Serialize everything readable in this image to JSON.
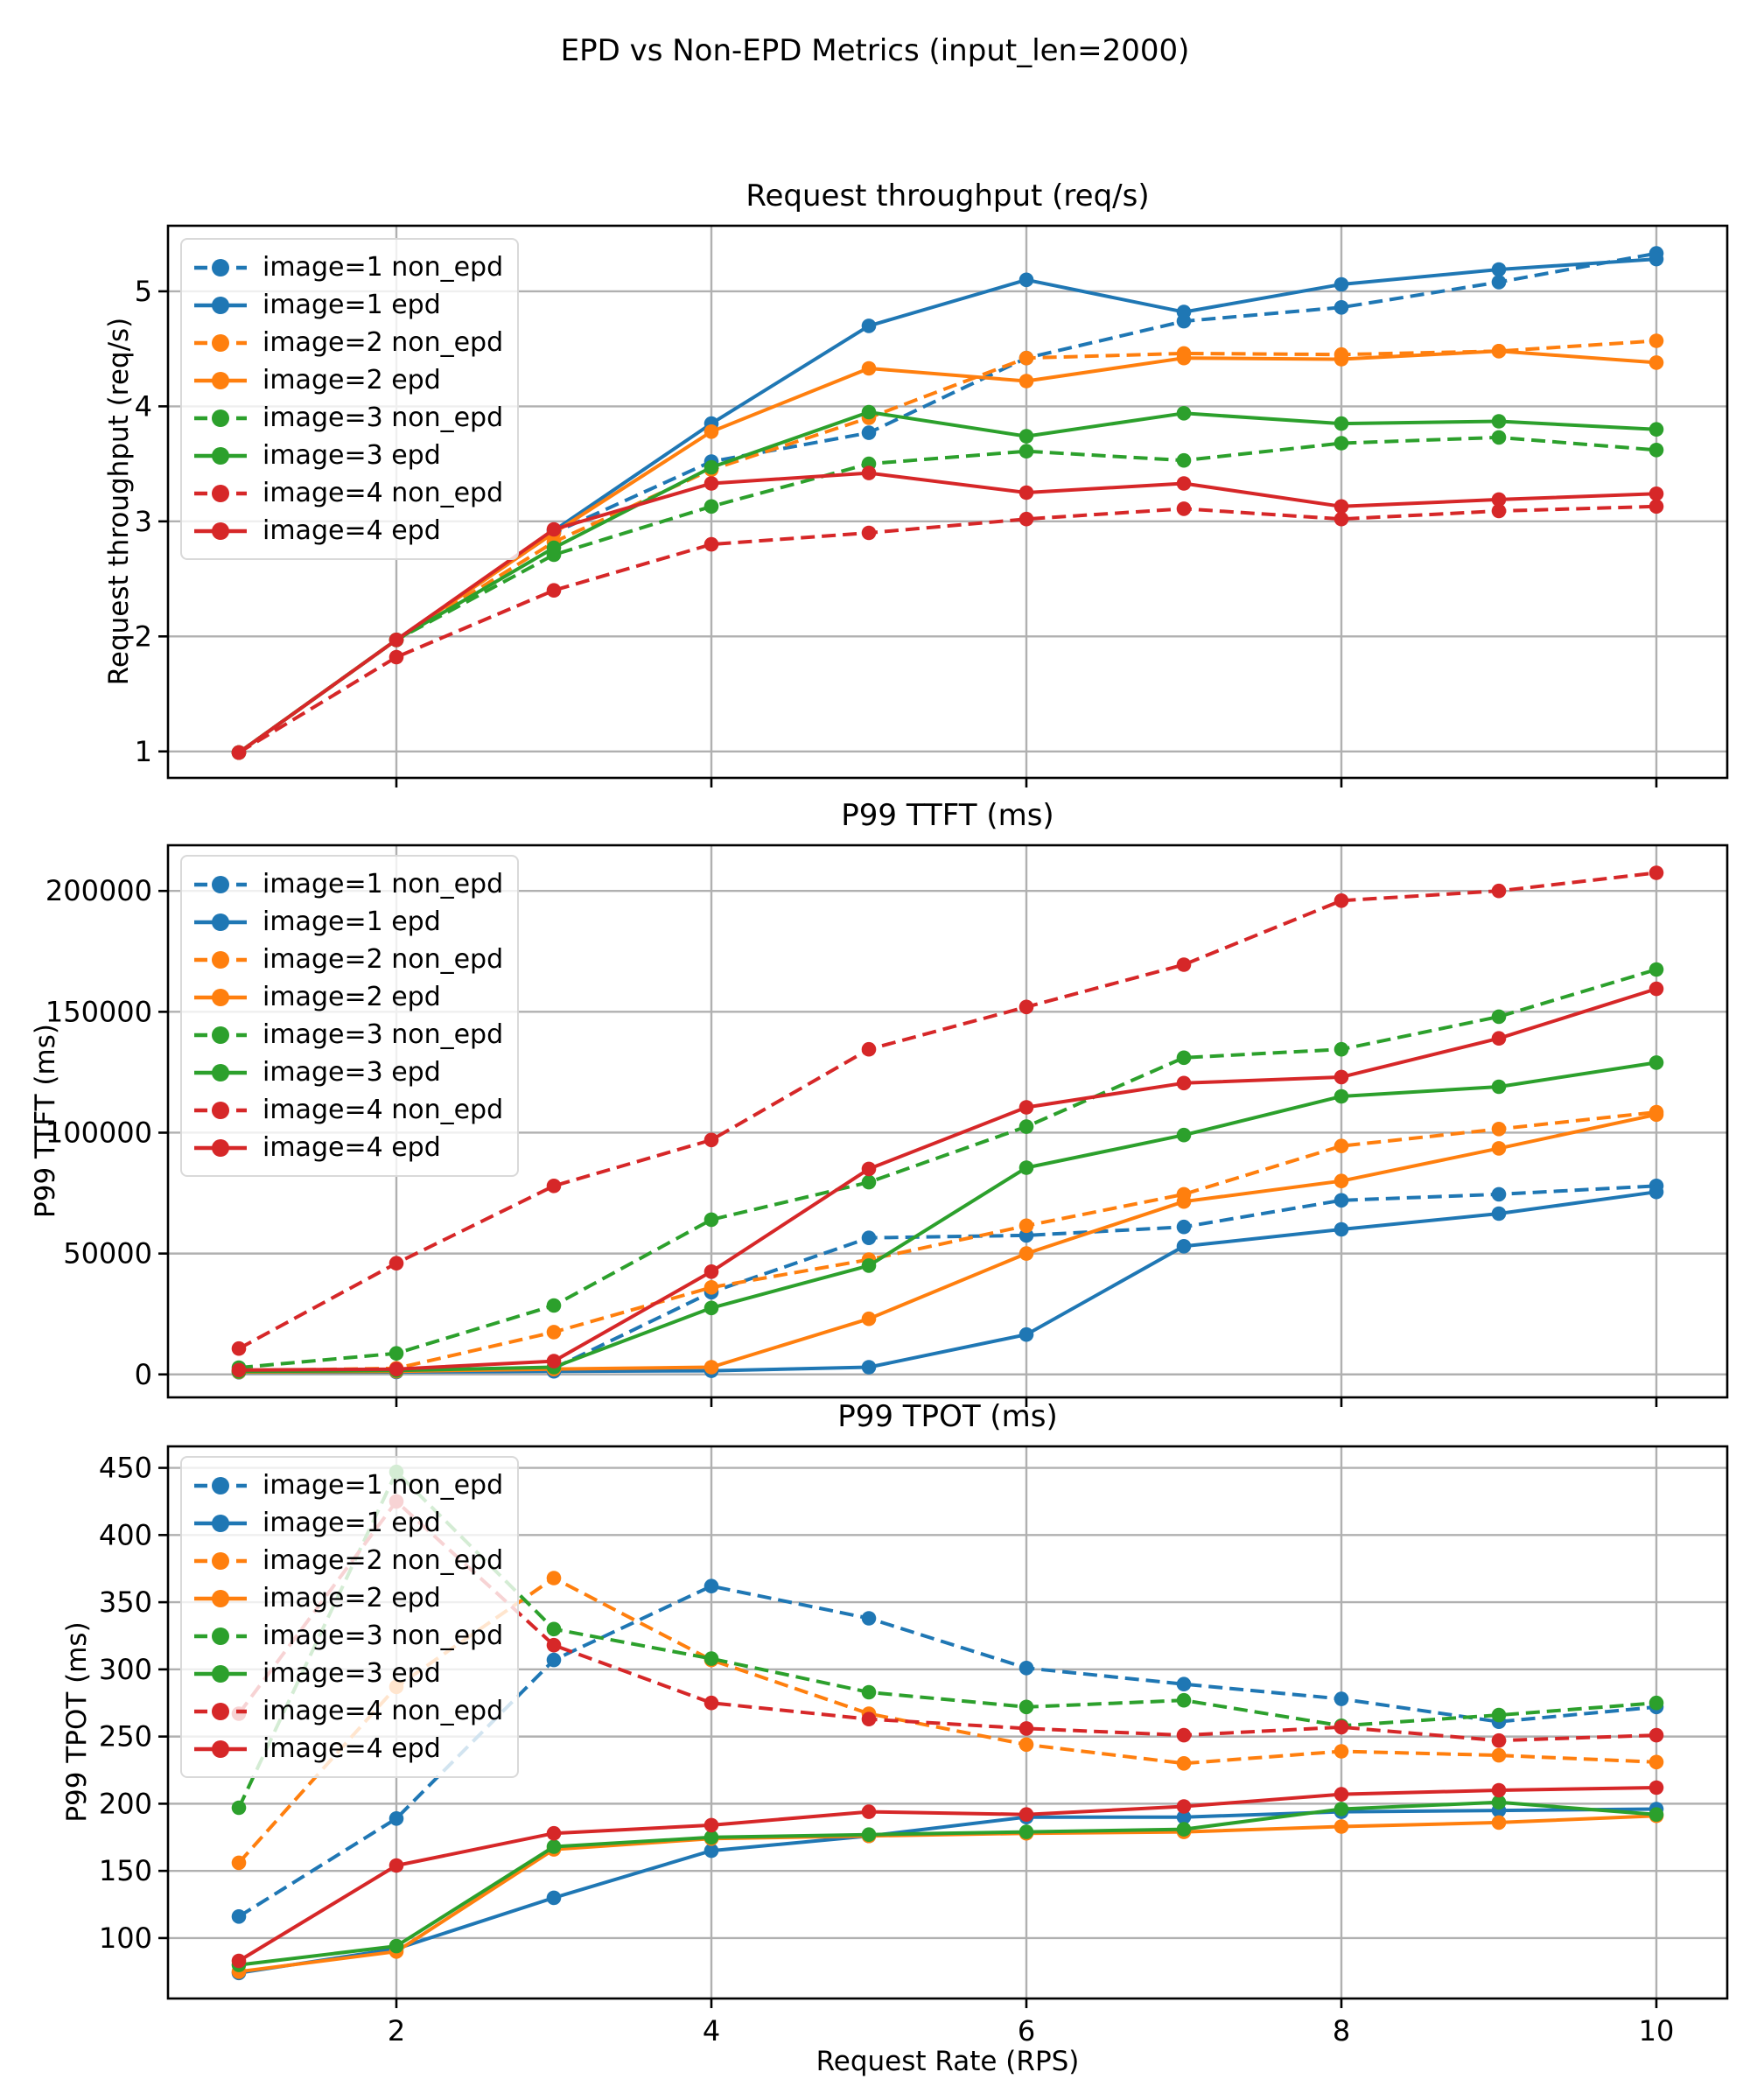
{
  "figure": {
    "title": "EPD vs Non-EPD Metrics (input_len=2000)",
    "xlabel": "Request Rate (RPS)",
    "background": "#ffffff"
  },
  "palette": {
    "blue": "#1f77b4",
    "orange": "#ff7f0e",
    "green": "#2ca02c",
    "red": "#d62728",
    "grid": "#b0b0b0",
    "spine": "#000000"
  },
  "legend": {
    "entries": [
      {
        "label": "image=1 non_epd",
        "color": "blue",
        "dashed": true
      },
      {
        "label": "image=1 epd",
        "color": "blue",
        "dashed": false
      },
      {
        "label": "image=2 non_epd",
        "color": "orange",
        "dashed": true
      },
      {
        "label": "image=2 epd",
        "color": "orange",
        "dashed": false
      },
      {
        "label": "image=3 non_epd",
        "color": "green",
        "dashed": true
      },
      {
        "label": "image=3 epd",
        "color": "green",
        "dashed": false
      },
      {
        "label": "image=4 non_epd",
        "color": "red",
        "dashed": true
      },
      {
        "label": "image=4 epd",
        "color": "red",
        "dashed": false
      }
    ]
  },
  "chart_data": [
    {
      "type": "line",
      "title": "Request throughput (req/s)",
      "ylabel": "Request throughput (req/s)",
      "xlabel": "",
      "grid": true,
      "legend_position": "upper left",
      "show_x_tick_labels": false,
      "x": [
        1,
        2,
        3,
        4,
        5,
        6,
        7,
        8,
        9,
        10
      ],
      "xticks": [
        2,
        4,
        6,
        8,
        10
      ],
      "yticks": [
        1,
        2,
        3,
        4,
        5
      ],
      "xlim": [
        0.55,
        10.45
      ],
      "ylim": [
        0.77,
        5.57
      ],
      "series": [
        {
          "name": "image=1 non_epd",
          "color": "blue",
          "dashed": true,
          "values": [
            0.99,
            1.97,
            2.9,
            3.52,
            3.77,
            4.42,
            4.74,
            4.86,
            5.08,
            5.33
          ]
        },
        {
          "name": "image=1 epd",
          "color": "blue",
          "dashed": false,
          "values": [
            0.99,
            1.97,
            2.92,
            3.85,
            4.7,
            5.1,
            4.82,
            5.06,
            5.19,
            5.28
          ]
        },
        {
          "name": "image=2 non_epd",
          "color": "orange",
          "dashed": true,
          "values": [
            0.99,
            1.97,
            2.82,
            3.45,
            3.9,
            4.42,
            4.46,
            4.45,
            4.48,
            4.57
          ]
        },
        {
          "name": "image=2 epd",
          "color": "orange",
          "dashed": false,
          "values": [
            0.99,
            1.97,
            2.9,
            3.78,
            4.33,
            4.22,
            4.42,
            4.41,
            4.48,
            4.38
          ]
        },
        {
          "name": "image=3 non_epd",
          "color": "green",
          "dashed": true,
          "values": [
            0.99,
            1.97,
            2.71,
            3.13,
            3.5,
            3.61,
            3.53,
            3.68,
            3.73,
            3.62
          ]
        },
        {
          "name": "image=3 epd",
          "color": "green",
          "dashed": false,
          "values": [
            0.99,
            1.97,
            2.77,
            3.47,
            3.95,
            3.74,
            3.94,
            3.85,
            3.87,
            3.8
          ]
        },
        {
          "name": "image=4 non_epd",
          "color": "red",
          "dashed": true,
          "values": [
            0.99,
            1.82,
            2.4,
            2.8,
            2.9,
            3.02,
            3.11,
            3.02,
            3.09,
            3.13
          ]
        },
        {
          "name": "image=4 epd",
          "color": "red",
          "dashed": false,
          "values": [
            0.99,
            1.97,
            2.93,
            3.33,
            3.42,
            3.25,
            3.33,
            3.13,
            3.19,
            3.24
          ]
        }
      ]
    },
    {
      "type": "line",
      "title": "P99 TTFT (ms)",
      "ylabel": "P99 TTFT (ms)",
      "xlabel": "",
      "grid": true,
      "legend_position": "upper left",
      "show_x_tick_labels": false,
      "x": [
        1,
        2,
        3,
        4,
        5,
        6,
        7,
        8,
        9,
        10
      ],
      "xticks": [
        2,
        4,
        6,
        8,
        10
      ],
      "yticks": [
        0,
        50000,
        100000,
        150000,
        200000
      ],
      "xlim": [
        0.55,
        10.45
      ],
      "ylim": [
        -9500,
        218900
      ],
      "series": [
        {
          "name": "image=1 non_epd",
          "color": "blue",
          "dashed": true,
          "values": [
            1200,
            1800,
            2500,
            34000,
            56500,
            57500,
            61000,
            72000,
            74500,
            78000
          ]
        },
        {
          "name": "image=1 epd",
          "color": "blue",
          "dashed": false,
          "values": [
            900,
            1000,
            1300,
            1500,
            3000,
            16500,
            53000,
            60000,
            66500,
            75500
          ]
        },
        {
          "name": "image=2 non_epd",
          "color": "orange",
          "dashed": true,
          "values": [
            1500,
            2500,
            17500,
            36000,
            47500,
            61500,
            74500,
            94500,
            101500,
            108500
          ]
        },
        {
          "name": "image=2 epd",
          "color": "orange",
          "dashed": false,
          "values": [
            1000,
            1300,
            2200,
            3000,
            23000,
            50000,
            71500,
            80000,
            93500,
            107500
          ]
        },
        {
          "name": "image=3 non_epd",
          "color": "green",
          "dashed": true,
          "values": [
            2800,
            8700,
            28500,
            64000,
            79500,
            102500,
            131000,
            134500,
            148000,
            167500
          ]
        },
        {
          "name": "image=3 epd",
          "color": "green",
          "dashed": false,
          "values": [
            1200,
            1600,
            3000,
            27500,
            45000,
            85500,
            99000,
            115000,
            119000,
            129000
          ]
        },
        {
          "name": "image=4 non_epd",
          "color": "red",
          "dashed": true,
          "values": [
            10700,
            46000,
            78000,
            97000,
            134500,
            152000,
            169500,
            196000,
            200000,
            207500
          ]
        },
        {
          "name": "image=4 epd",
          "color": "red",
          "dashed": false,
          "values": [
            1800,
            2200,
            5500,
            42500,
            85000,
            110500,
            120500,
            123000,
            139000,
            159500
          ]
        }
      ]
    },
    {
      "type": "line",
      "title": "P99 TPOT (ms)",
      "ylabel": "P99 TPOT (ms)",
      "xlabel": "Request Rate (RPS)",
      "grid": true,
      "legend_position": "upper left",
      "show_x_tick_labels": true,
      "x": [
        1,
        2,
        3,
        4,
        5,
        6,
        7,
        8,
        9,
        10
      ],
      "xticks": [
        2,
        4,
        6,
        8,
        10
      ],
      "yticks": [
        100,
        150,
        200,
        250,
        300,
        350,
        400,
        450
      ],
      "xlim": [
        0.55,
        10.45
      ],
      "ylim": [
        55,
        466
      ],
      "series": [
        {
          "name": "image=1 non_epd",
          "color": "blue",
          "dashed": true,
          "values": [
            116,
            189,
            307,
            362,
            338,
            301,
            289,
            278,
            261,
            272
          ]
        },
        {
          "name": "image=1 epd",
          "color": "blue",
          "dashed": false,
          "values": [
            74,
            92,
            130,
            165,
            176,
            190,
            190,
            194,
            195,
            196
          ]
        },
        {
          "name": "image=2 non_epd",
          "color": "orange",
          "dashed": true,
          "values": [
            156,
            287,
            368,
            307,
            267,
            244,
            230,
            239,
            236,
            231
          ]
        },
        {
          "name": "image=2 epd",
          "color": "orange",
          "dashed": false,
          "values": [
            75,
            90,
            166,
            174,
            176,
            178,
            179,
            183,
            186,
            191
          ]
        },
        {
          "name": "image=3 non_epd",
          "color": "green",
          "dashed": true,
          "values": [
            197,
            447,
            330,
            308,
            283,
            272,
            277,
            258,
            266,
            275
          ]
        },
        {
          "name": "image=3 epd",
          "color": "green",
          "dashed": false,
          "values": [
            80,
            94,
            168,
            175,
            177,
            179,
            181,
            196,
            201,
            192
          ]
        },
        {
          "name": "image=4 non_epd",
          "color": "red",
          "dashed": true,
          "values": [
            267,
            425,
            318,
            275,
            263,
            256,
            251,
            257,
            247,
            251
          ]
        },
        {
          "name": "image=4 epd",
          "color": "red",
          "dashed": false,
          "values": [
            83,
            154,
            178,
            184,
            194,
            192,
            198,
            207,
            210,
            212
          ]
        }
      ]
    }
  ]
}
